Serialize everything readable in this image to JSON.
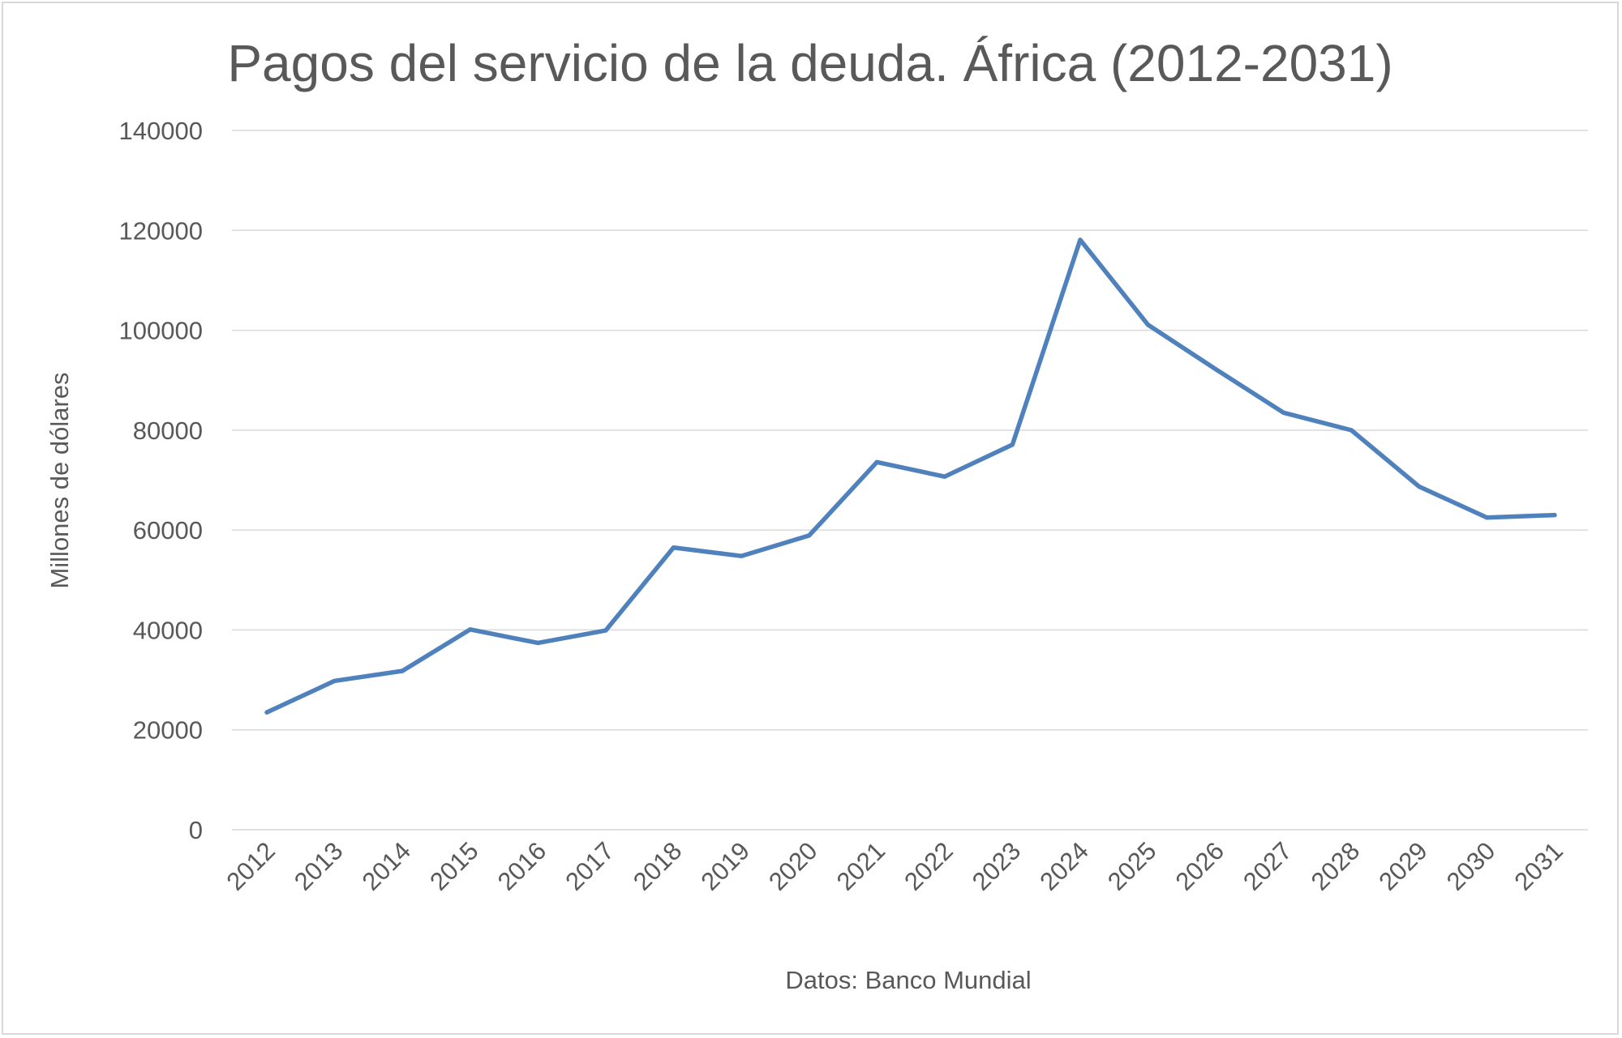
{
  "chart_data": {
    "type": "line",
    "title": "Pagos del servicio de la deuda. África (2012-2031)",
    "xlabel": "Datos: Banco Mundial",
    "ylabel": "Millones de dólares",
    "ylim": [
      0,
      140000
    ],
    "yticks": [
      "0",
      "20000",
      "40000",
      "60000",
      "80000",
      "100000",
      "120000",
      "140000"
    ],
    "grid": true,
    "legend": "none",
    "categories": [
      "2012",
      "2013",
      "2014",
      "2015",
      "2016",
      "2017",
      "2018",
      "2019",
      "2020",
      "2021",
      "2022",
      "2023",
      "2024",
      "2025",
      "2026",
      "2027",
      "2028",
      "2029",
      "2030",
      "2031"
    ],
    "series": [
      {
        "values": [
          23500,
          29800,
          31800,
          40100,
          37400,
          39900,
          56500,
          54800,
          58900,
          73600,
          70700,
          77100,
          118100,
          101100,
          92200,
          83500,
          80000,
          68700,
          62500,
          63000
        ],
        "color": "#4f81bd"
      }
    ]
  }
}
